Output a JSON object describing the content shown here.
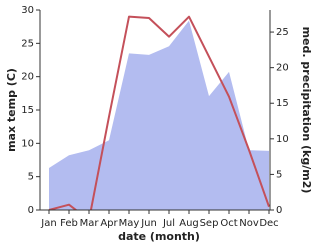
{
  "chart_data": {
    "type": "line-area",
    "x_label": "date (month)",
    "y_label": "max temp (C)",
    "y2_label": "med. precipitation (kg/m2)",
    "categories": [
      "Jan",
      "Feb",
      "Mar",
      "Apr",
      "May",
      "Jun",
      "Jul",
      "Aug",
      "Sep",
      "Oct",
      "Nov",
      "Dec"
    ],
    "series": [
      {
        "name": "med. precipitation",
        "axis": "y2",
        "kind": "area",
        "color": "#b3bcf0",
        "values": [
          5.9,
          7.7,
          8.4,
          9.8,
          22,
          21.8,
          23,
          26.6,
          16,
          19.4,
          8.4,
          8.3
        ]
      },
      {
        "name": "max temp",
        "kind": "line",
        "color": "#c4505a",
        "values": [
          0,
          0.8,
          -1.5,
          14,
          29,
          28.8,
          26,
          29,
          23,
          17,
          9,
          0.5
        ]
      }
    ],
    "ylim": [
      0,
      30
    ],
    "yticks": [
      0,
      5,
      10,
      15,
      20,
      25,
      30
    ],
    "y2lim": [
      0,
      28.1
    ],
    "y2ticks": [
      0,
      5,
      10,
      15,
      20,
      25
    ]
  }
}
